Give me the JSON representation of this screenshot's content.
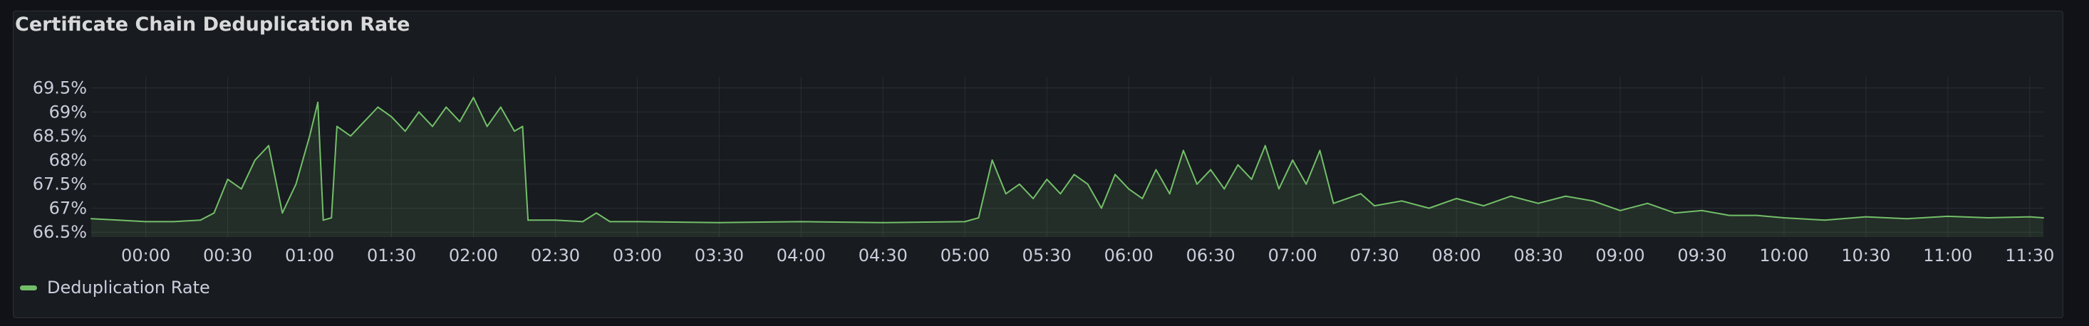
{
  "panel": {
    "title": "Certificate Chain Deduplication Rate"
  },
  "colors": {
    "series": "#73bf69",
    "grid": "#2a2d33",
    "text": "#ccccdc",
    "background": "#181b1f"
  },
  "chart_data": {
    "type": "area",
    "title": "Certificate Chain Deduplication Rate",
    "xlabel": "",
    "ylabel": "",
    "y_unit": "%",
    "ylim": [
      66.4,
      69.7
    ],
    "y_ticks": [
      "66.5%",
      "67%",
      "67.5%",
      "68%",
      "68.5%",
      "69%",
      "69.5%"
    ],
    "y_tick_values": [
      66.5,
      67,
      67.5,
      68,
      68.5,
      69,
      69.5
    ],
    "x_range": [
      "23:40",
      "11:35"
    ],
    "x_ticks": [
      "00:00",
      "00:30",
      "01:00",
      "01:30",
      "02:00",
      "02:30",
      "03:00",
      "03:30",
      "04:00",
      "04:30",
      "05:00",
      "05:30",
      "06:00",
      "06:30",
      "07:00",
      "07:30",
      "08:00",
      "08:30",
      "09:00",
      "09:30",
      "10:00",
      "10:30",
      "11:00",
      "11:30"
    ],
    "grid": true,
    "legend_position": "bottom-left",
    "series": [
      {
        "name": "Deduplication Rate",
        "color": "#73bf69",
        "x": [
          "23:40",
          "23:50",
          "00:00",
          "00:10",
          "00:20",
          "00:25",
          "00:30",
          "00:35",
          "00:40",
          "00:45",
          "00:50",
          "00:55",
          "01:00",
          "01:03",
          "01:05",
          "01:08",
          "01:10",
          "01:15",
          "01:20",
          "01:25",
          "01:30",
          "01:35",
          "01:40",
          "01:45",
          "01:50",
          "01:55",
          "02:00",
          "02:05",
          "02:10",
          "02:15",
          "02:18",
          "02:20",
          "02:30",
          "02:40",
          "02:45",
          "02:50",
          "03:00",
          "03:30",
          "04:00",
          "04:30",
          "05:00",
          "05:05",
          "05:10",
          "05:15",
          "05:20",
          "05:25",
          "05:30",
          "05:35",
          "05:40",
          "05:45",
          "05:50",
          "05:55",
          "06:00",
          "06:05",
          "06:10",
          "06:15",
          "06:20",
          "06:25",
          "06:30",
          "06:35",
          "06:40",
          "06:45",
          "06:50",
          "06:55",
          "07:00",
          "07:05",
          "07:10",
          "07:15",
          "07:20",
          "07:25",
          "07:30",
          "07:40",
          "07:50",
          "08:00",
          "08:10",
          "08:20",
          "08:30",
          "08:40",
          "08:50",
          "09:00",
          "09:10",
          "09:20",
          "09:30",
          "09:40",
          "09:50",
          "10:00",
          "10:15",
          "10:30",
          "10:45",
          "11:00",
          "11:15",
          "11:30",
          "11:35"
        ],
        "values": [
          66.78,
          66.75,
          66.72,
          66.72,
          66.75,
          66.9,
          67.6,
          67.4,
          68.0,
          68.3,
          66.9,
          67.5,
          68.5,
          69.2,
          66.75,
          66.8,
          68.7,
          68.5,
          68.8,
          69.1,
          68.9,
          68.6,
          69.0,
          68.7,
          69.1,
          68.8,
          69.3,
          68.7,
          69.1,
          68.6,
          68.7,
          66.75,
          66.75,
          66.72,
          66.9,
          66.72,
          66.72,
          66.7,
          66.72,
          66.7,
          66.72,
          66.8,
          68.0,
          67.3,
          67.5,
          67.2,
          67.6,
          67.3,
          67.7,
          67.5,
          67.0,
          67.7,
          67.4,
          67.2,
          67.8,
          67.3,
          68.2,
          67.5,
          67.8,
          67.4,
          67.9,
          67.6,
          68.3,
          67.4,
          68.0,
          67.5,
          68.2,
          67.1,
          67.2,
          67.3,
          67.05,
          67.15,
          67.0,
          67.2,
          67.05,
          67.25,
          67.1,
          67.25,
          67.15,
          66.95,
          67.1,
          66.9,
          66.95,
          66.85,
          66.85,
          66.8,
          66.75,
          66.82,
          66.78,
          66.83,
          66.8,
          66.82,
          66.8
        ]
      }
    ]
  }
}
